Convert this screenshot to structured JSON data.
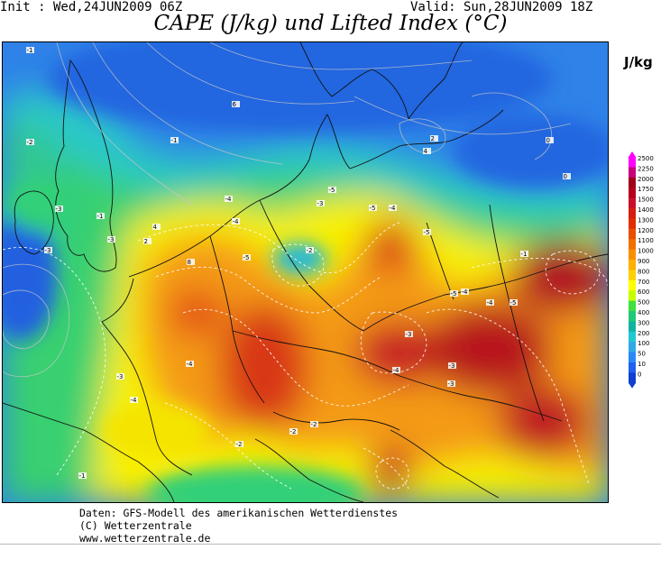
{
  "header": {
    "init": "Init : Wed,24JUN2009 06Z",
    "valid": "Valid: Sun,28JUN2009 18Z",
    "title": "CAPE (J/kg) und Lifted Index (°C)"
  },
  "legend": {
    "unit": "J/kg",
    "levels": [
      "2500",
      "2250",
      "2000",
      "1750",
      "1500",
      "1400",
      "1300",
      "1200",
      "1100",
      "1000",
      "900",
      "800",
      "700",
      "600",
      "500",
      "400",
      "300",
      "200",
      "100",
      "50",
      "10",
      "0"
    ],
    "colors": [
      "#ff00ff",
      "#c8007c",
      "#a00018",
      "#b4001e",
      "#c8102a",
      "#d42010",
      "#e03000",
      "#e85000",
      "#f07000",
      "#f89000",
      "#ffb000",
      "#ffd000",
      "#ffff00",
      "#c8ff00",
      "#40e040",
      "#20c878",
      "#10b4a0",
      "#20c8d0",
      "#30a8e8",
      "#2888f8",
      "#2060f0",
      "#1040d0"
    ]
  },
  "credits": {
    "line1": "Daten: GFS-Modell des amerikanischen Wetterdienstes",
    "line2": "(C) Wetterzentrale",
    "line3": "www.wetterzentrale.de"
  },
  "map": {
    "lifted_index_labels": [
      {
        "v": "-1"
      },
      {
        "v": "-2"
      },
      {
        "v": "-3"
      },
      {
        "v": "-4"
      },
      {
        "v": "-5"
      },
      {
        "v": "-1"
      },
      {
        "v": "-3"
      },
      {
        "v": "-3"
      },
      {
        "v": "-4"
      },
      {
        "v": "-5"
      },
      {
        "v": "-3"
      },
      {
        "v": "-5"
      },
      {
        "v": "-2"
      },
      {
        "v": "-4"
      },
      {
        "v": "-3"
      },
      {
        "v": "-5"
      },
      {
        "v": "-4"
      },
      {
        "v": "-5"
      },
      {
        "v": "-5"
      },
      {
        "v": "-3"
      },
      {
        "v": "-2"
      },
      {
        "v": "-4"
      },
      {
        "v": "-4"
      },
      {
        "v": "-4"
      },
      {
        "v": "-3"
      },
      {
        "v": "-1"
      },
      {
        "v": "-2"
      },
      {
        "v": "-1"
      },
      {
        "v": "-4"
      },
      {
        "v": "-3"
      },
      {
        "v": "-2"
      },
      {
        "v": "0"
      },
      {
        "v": "2"
      },
      {
        "v": "4"
      },
      {
        "v": "6"
      },
      {
        "v": "8"
      },
      {
        "v": "4"
      },
      {
        "v": "2"
      },
      {
        "v": "0"
      },
      {
        "v": "-1"
      }
    ]
  }
}
